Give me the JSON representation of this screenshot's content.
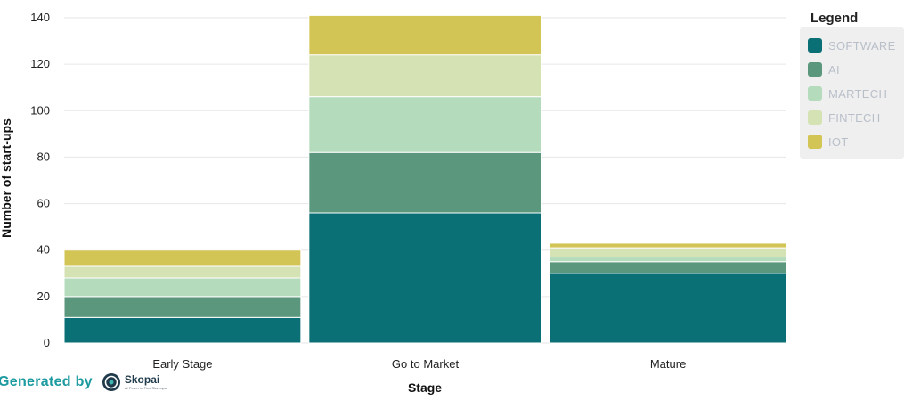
{
  "chart_data": {
    "type": "bar",
    "stacked": true,
    "categories": [
      "Early Stage",
      "Go to Market",
      "Mature"
    ],
    "series": [
      {
        "name": "SOFTWARE",
        "color": "#0b7076",
        "values": [
          11,
          56,
          30
        ]
      },
      {
        "name": "AI",
        "color": "#5a977d",
        "values": [
          9,
          26,
          5
        ]
      },
      {
        "name": "MARTECH",
        "color": "#b5dbbd",
        "values": [
          8,
          24,
          2
        ]
      },
      {
        "name": "FINTECH",
        "color": "#d4e2b4",
        "values": [
          5,
          18,
          4
        ]
      },
      {
        "name": "IOT",
        "color": "#d3c456",
        "values": [
          7,
          17,
          2
        ]
      }
    ],
    "xlabel": "Stage",
    "ylabel": "Number of start-ups",
    "ylim": [
      0,
      140
    ],
    "yticks": [
      0,
      20,
      40,
      60,
      80,
      100,
      120,
      140
    ],
    "grid": true,
    "legend_position": "right",
    "legend_title": "Legend"
  },
  "footer": {
    "generated_by": "Generated by",
    "brand": "Skopai",
    "brand_tagline": "AI Power to Find Start-ups"
  }
}
